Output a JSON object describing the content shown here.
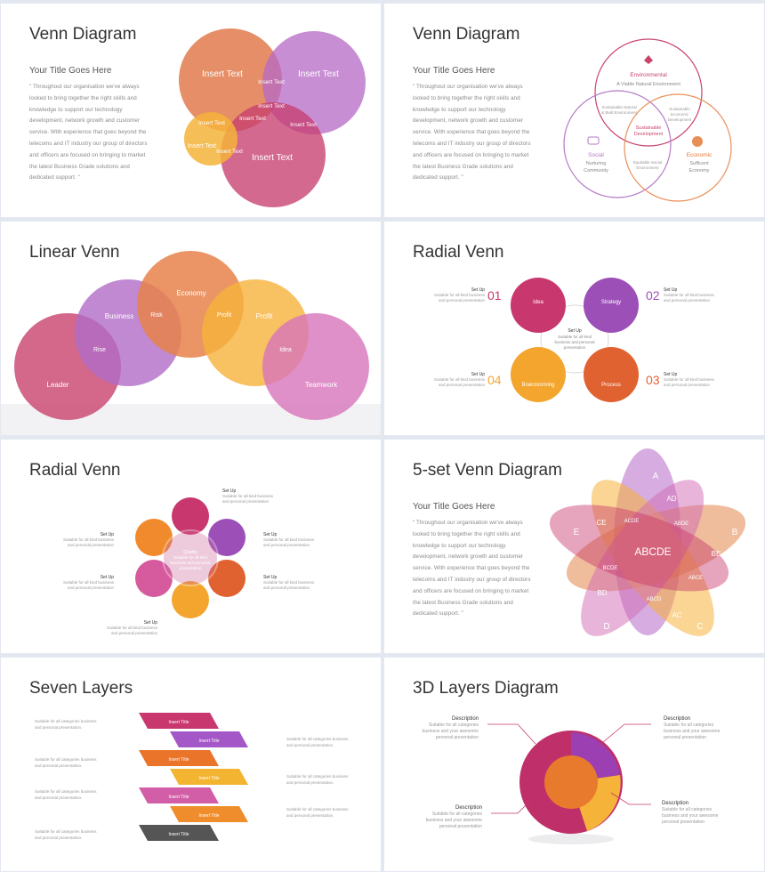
{
  "slides": {
    "s1": {
      "title": "Venn Diagram",
      "subtitle": "Your Title Goes Here",
      "body": "\" Throughout our organisation we've always looked to bring together the right skills and knowledge to support our technology development, network growth and customer service. With experience that goes beyond the telecoms and IT industry our group of directors and officers are focused on bringing to market the latest Business Grade solutions and dedicated support. \"",
      "labels": {
        "a": "Insert Text",
        "b": "Insert Text",
        "c": "Insert Text",
        "d": "Insert Text",
        "ab": "Insert Text",
        "abc": "Insert Text",
        "bc": "Insert Text",
        "ac": "Insert Text",
        "ad": "Insert Text",
        "cd": "Insert Text",
        "acd": "Insert Text"
      }
    },
    "s2": {
      "title": "Venn Diagram",
      "subtitle": "Your Title Goes Here",
      "body": "\" Throughout our organisation we've always looked to bring together the right skills and knowledge to support our technology development, network growth and customer service. With experience that goes beyond the telecoms and IT industry our group of directors and officers are focused on bringing to market the latest Business Grade solutions and dedicated support. \"",
      "env_title": "Environmental",
      "env_sub": "A Viable Natural Environment",
      "social_title": "Social",
      "social_sub1": "Nurturing",
      "social_sub2": "Community",
      "eco_title": "Economic",
      "eco_sub1": "Sufficent",
      "eco_sub2": "Economy",
      "es1": "Sustainable Natural",
      "es2": "& Built Environment",
      "ee1": "Sustainable",
      "ee2": "Economic",
      "ee3": "Development",
      "se1": "Equitable Social",
      "se2": "Environment",
      "center1": "Sustainable",
      "center2": "Development"
    },
    "s3": {
      "title": "Linear Venn",
      "circles": [
        "Leader",
        "Business",
        "Economy",
        "Profit",
        "Teamwork"
      ],
      "overlaps": [
        "Rise",
        "Risk",
        "Profit",
        "Idea"
      ]
    },
    "s4": {
      "title": "Radial Venn",
      "nodes": [
        "Idea",
        "Strategy",
        "Brainstorming",
        "Process"
      ],
      "numbers": [
        "01",
        "02",
        "04",
        "03"
      ],
      "setup": "Set Up",
      "desc1": "Suitable for all kind business",
      "desc2": "and personal presentation",
      "center1": "Set Up",
      "center2": "Suitable for all kind",
      "center3": "business and personal",
      "center4": "presentation"
    },
    "s5": {
      "title": "Radial Venn",
      "setup": "Set Up",
      "desc1": "Suitable for all kind business",
      "desc2": "and personal presentation",
      "center1": "Quality",
      "center2": "Suitable for all kind",
      "center3": "business and personal",
      "center4": "presentation"
    },
    "s6": {
      "title": "5-set Venn Diagram",
      "subtitle": "Your Title Goes Here",
      "body": "\" Throughout our organisation we've always looked to bring together the right skills and knowledge to support our technology development, network growth and customer service. With experience that goes beyond the telecoms and IT industry our group of directors and officers are focused on bringing to market the latest Business Grade solutions and dedicated support. \"",
      "sets": [
        "A",
        "B",
        "C",
        "D",
        "E"
      ],
      "pairs": [
        "AD",
        "BE",
        "AC",
        "BD",
        "CE"
      ],
      "triples": [
        "ABDE",
        "ABCE",
        "ABCD",
        "BCDE",
        "ACDE"
      ],
      "center": "ABCDE"
    },
    "s7": {
      "title": "Seven Layers",
      "layer_label": "Insert Title",
      "desc1": "Suitable for all categories business",
      "desc2": "and personal presentation."
    },
    "s8": {
      "title": "3D Layers Diagram",
      "heading": "Description",
      "desc1": "Suitable for all categories",
      "desc2": "business and your awesome",
      "desc3": "personal presentation"
    }
  }
}
